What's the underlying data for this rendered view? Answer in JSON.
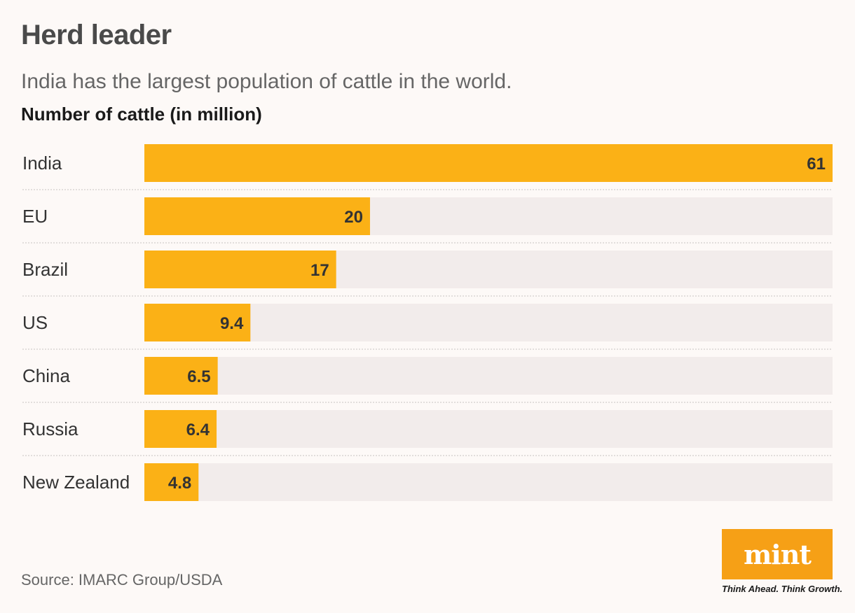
{
  "header": {
    "title": "Herd leader",
    "subtitle": "India has the largest population of cattle in the world.",
    "unit_label": "Number of cattle (in million)"
  },
  "footer": {
    "source": "Source: IMARC Group/USDA",
    "logo_text": "mint",
    "tagline": "Think Ahead. Think Growth."
  },
  "colors": {
    "bar": "#fbb116",
    "track": "#f2eceb",
    "separator": "#c8c2c0",
    "value_text": "#333333",
    "category_text": "#333333",
    "logo_bg": "#f6a016"
  },
  "chart_data": {
    "type": "bar",
    "orientation": "horizontal",
    "title": "Herd leader",
    "subtitle": "India has the largest population of cattle in the world.",
    "xlabel": "Number of cattle (in million)",
    "ylabel": "",
    "categories": [
      "India",
      "EU",
      "Brazil",
      "US",
      "China",
      "Russia",
      "New Zealand"
    ],
    "values": [
      61,
      20,
      17,
      9.4,
      6.5,
      6.4,
      4.8
    ],
    "value_labels": [
      "61",
      "20",
      "17",
      "9.4",
      "6.5",
      "6.4",
      "4.8"
    ],
    "xlim": [
      0,
      61
    ],
    "grid": false,
    "legend": "none"
  }
}
